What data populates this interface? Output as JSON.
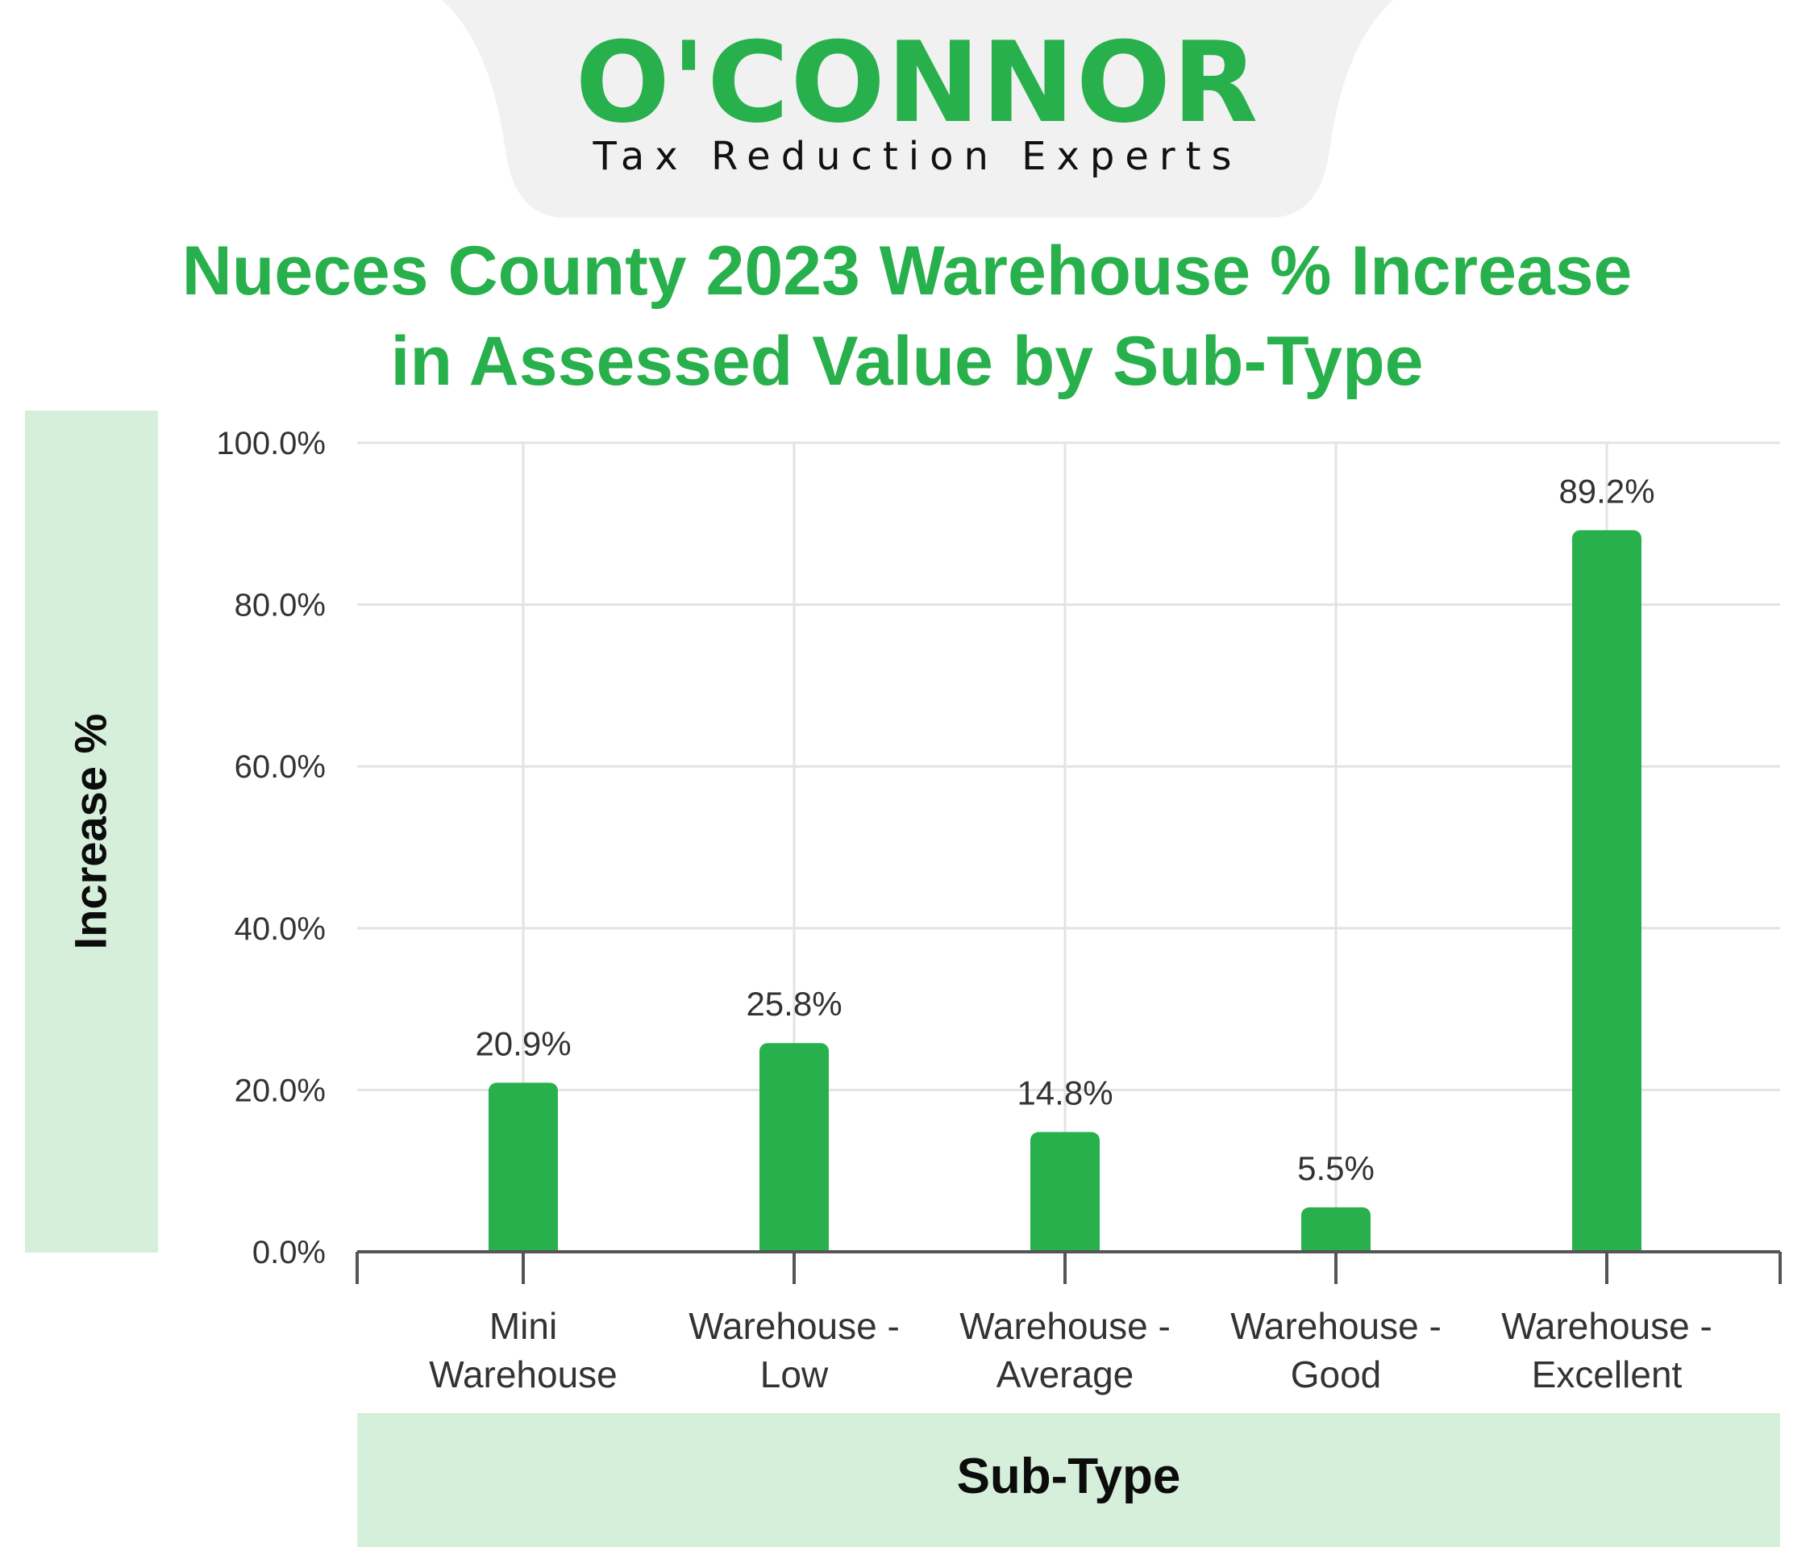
{
  "brand": {
    "logo_text": "O'CONNOR",
    "tagline": "Tax Reduction Experts",
    "green": "#27b04b",
    "tab_color": "#f1f1f1",
    "panel_color": "#d5efdb"
  },
  "chart_data": {
    "type": "bar",
    "title_lines": [
      "Nueces County 2023 Warehouse % Increase",
      "in Assessed Value by Sub-Type"
    ],
    "xlabel": "Sub-Type",
    "ylabel": "Increase %",
    "categories": [
      [
        "Mini",
        "Warehouse"
      ],
      [
        "Warehouse -",
        "Low"
      ],
      [
        "Warehouse -",
        "Average"
      ],
      [
        "Warehouse -",
        "Good"
      ],
      [
        "Warehouse -",
        "Excellent"
      ]
    ],
    "values": [
      20.9,
      25.8,
      14.8,
      5.5,
      89.2
    ],
    "data_labels": [
      "20.9%",
      "25.8%",
      "14.8%",
      "5.5%",
      "89.2%"
    ],
    "yticks": [
      "0.0%",
      "20.0%",
      "40.0%",
      "60.0%",
      "80.0%",
      "100.0%"
    ],
    "ylim": [
      0,
      100
    ],
    "grid": true,
    "bar_color": "#27b04b"
  }
}
